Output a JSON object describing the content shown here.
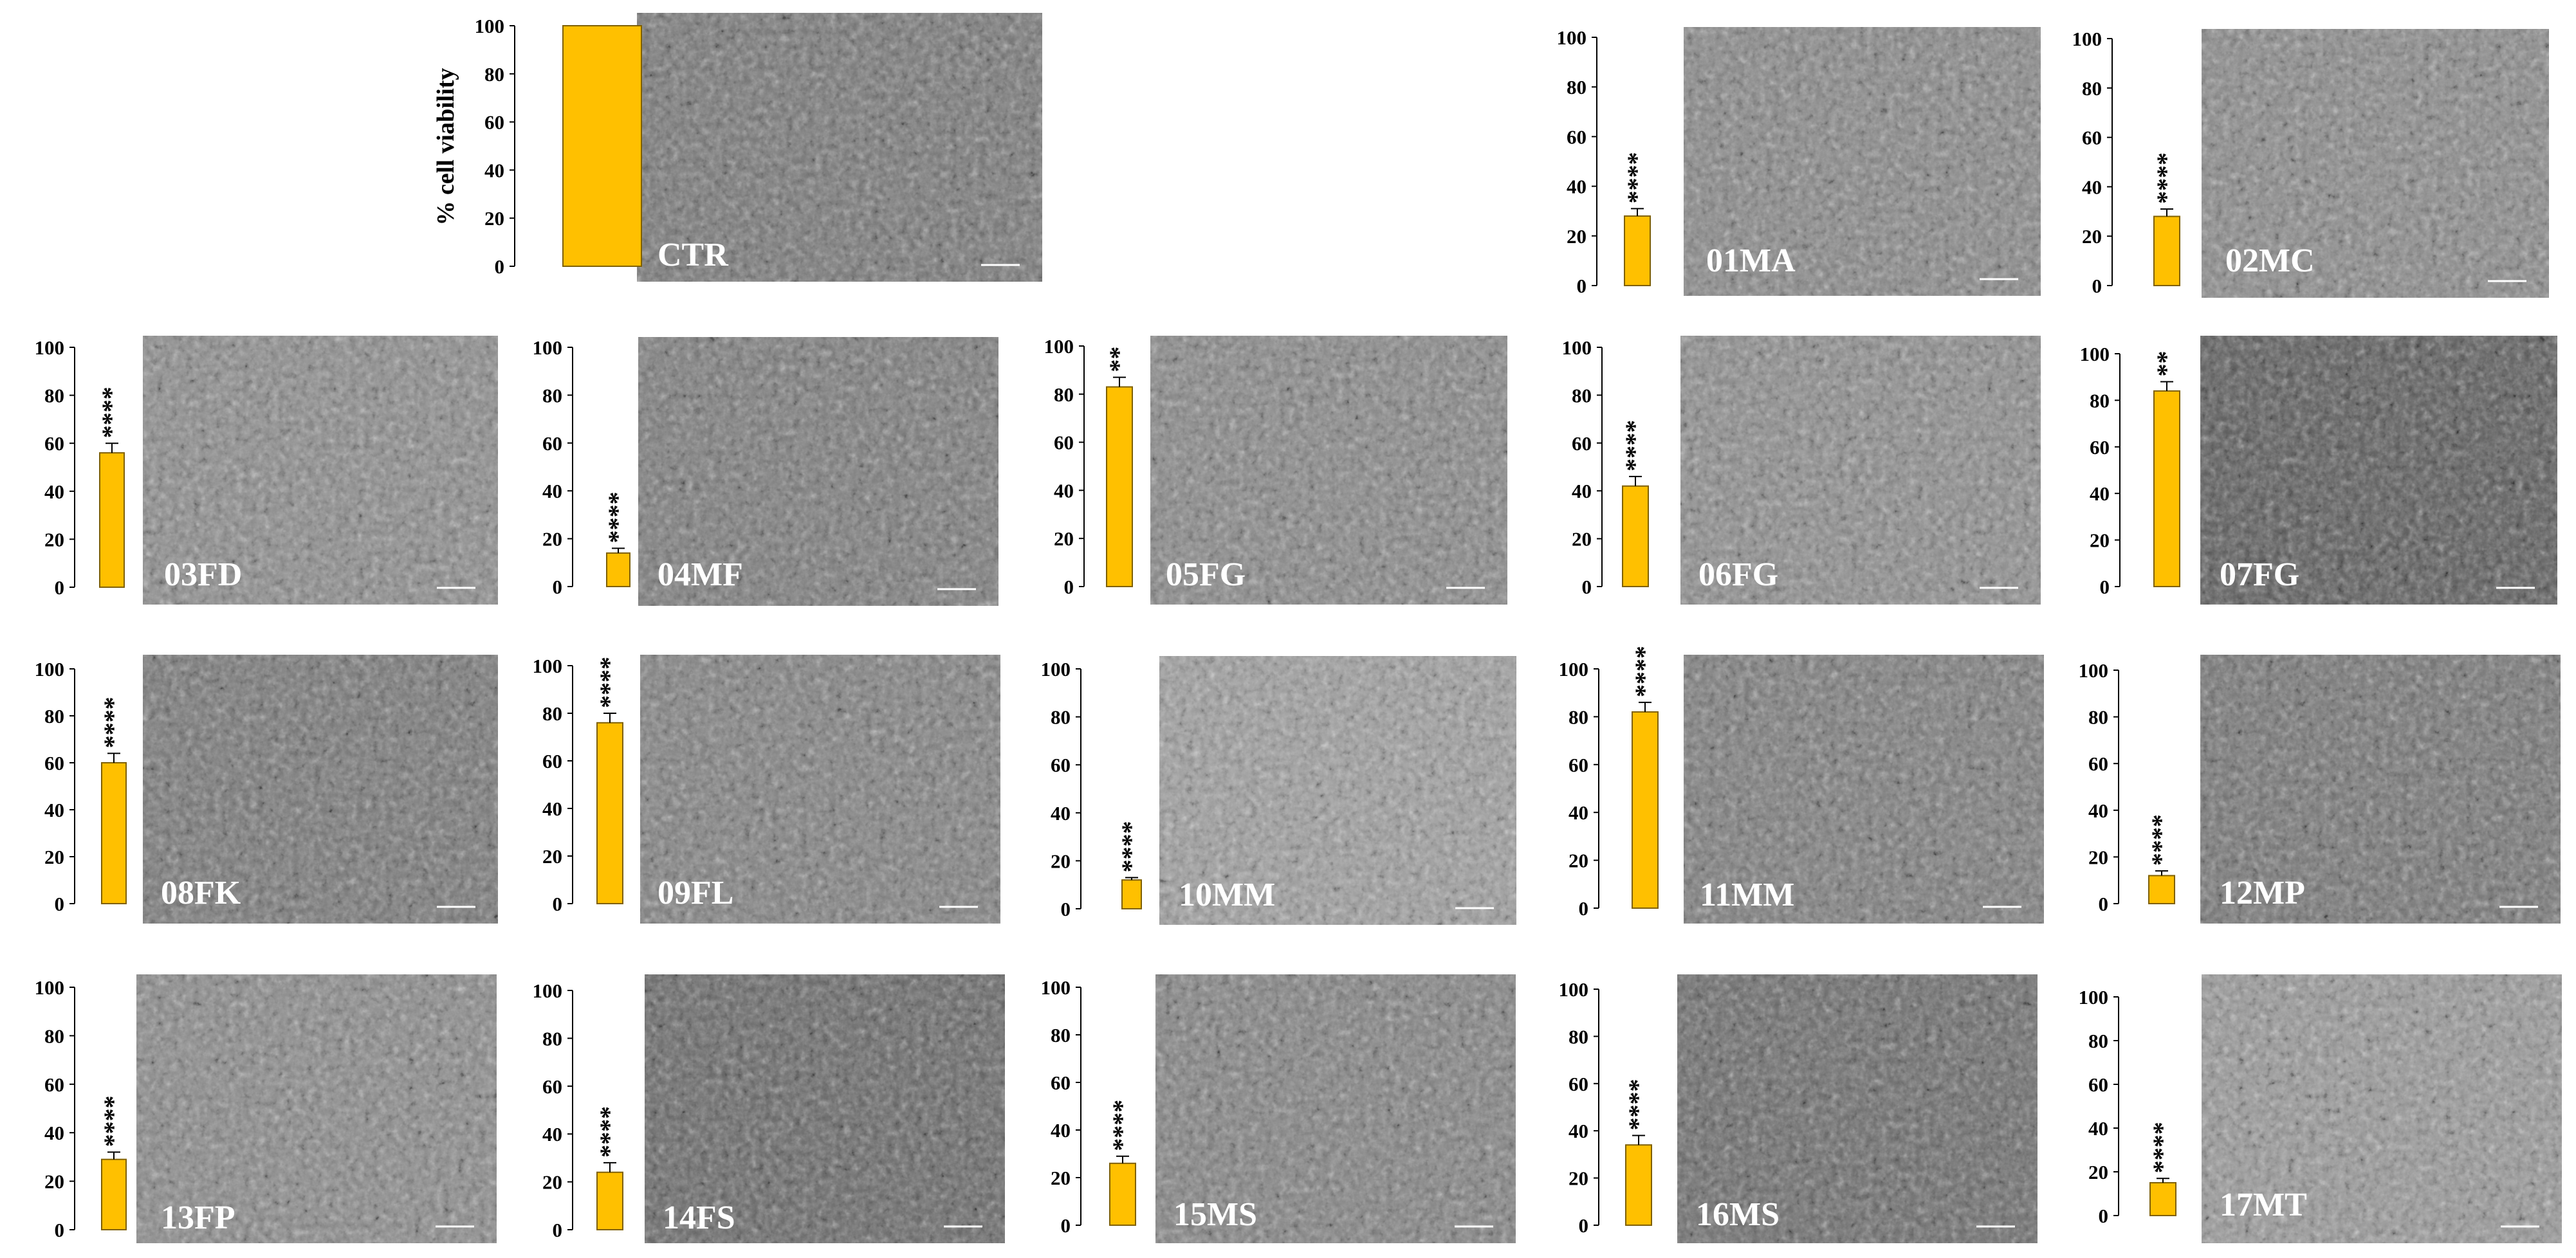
{
  "chart_data": {
    "type": "bar",
    "ylabel": "%  cell viability",
    "ylim": [
      0,
      100
    ],
    "yticks": [
      0,
      20,
      40,
      60,
      80,
      100
    ],
    "grid": false,
    "bar_color": "#FFC000",
    "bar_edge_color": "#7F6000",
    "panels": [
      {
        "label": "CTR",
        "value": 100,
        "error": 0,
        "significance": ""
      },
      {
        "label": "01MA",
        "value": 28,
        "error": 3,
        "significance": "****"
      },
      {
        "label": "02MC",
        "value": 28,
        "error": 3,
        "significance": "****"
      },
      {
        "label": "03FD",
        "value": 56,
        "error": 4,
        "significance": "****"
      },
      {
        "label": "04MF",
        "value": 14,
        "error": 2,
        "significance": "****"
      },
      {
        "label": "05FG",
        "value": 83,
        "error": 4,
        "significance": "**"
      },
      {
        "label": "06FG",
        "value": 42,
        "error": 4,
        "significance": "****"
      },
      {
        "label": "07FG",
        "value": 84,
        "error": 4,
        "significance": "**"
      },
      {
        "label": "08FK",
        "value": 60,
        "error": 4,
        "significance": "****"
      },
      {
        "label": "09FL",
        "value": 76,
        "error": 4,
        "significance": "****"
      },
      {
        "label": "10MM",
        "value": 12,
        "error": 1,
        "significance": "****"
      },
      {
        "label": "11MM",
        "value": 82,
        "error": 4,
        "significance": "****"
      },
      {
        "label": "12MP",
        "value": 12,
        "error": 2,
        "significance": "****"
      },
      {
        "label": "13FP",
        "value": 29,
        "error": 3,
        "significance": "****"
      },
      {
        "label": "14FS",
        "value": 24,
        "error": 4,
        "significance": "****"
      },
      {
        "label": "15MS",
        "value": 26,
        "error": 3,
        "significance": "****"
      },
      {
        "label": "16MS",
        "value": 34,
        "error": 4,
        "significance": "****"
      },
      {
        "label": "17MT",
        "value": 15,
        "error": 2,
        "significance": "****"
      }
    ]
  }
}
